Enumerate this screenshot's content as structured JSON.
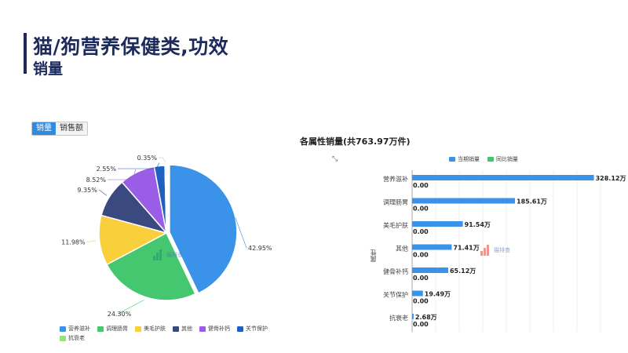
{
  "header": {
    "title": "猫/狗营养保健类,功效",
    "subtitle": "销量"
  },
  "tabs": [
    {
      "label": "销量",
      "active": true
    },
    {
      "label": "销售额",
      "active": false
    }
  ],
  "watermark": {
    "text": "猫排查",
    "icon": "dst-logo-icon"
  },
  "colors": {
    "accent": "#2f8ae0",
    "title": "#1d2a5c",
    "bar_current": "#3a93e8",
    "bar_yoy": "#3fc76b"
  },
  "chart_data": [
    {
      "type": "pie",
      "title": "",
      "categories": [
        "营养滋补",
        "调理肠胃",
        "美毛护肤",
        "其他",
        "健骨补钙",
        "关节保护",
        "抗衰老"
      ],
      "values": [
        42.95,
        24.3,
        11.98,
        9.35,
        8.52,
        2.55,
        0.35
      ],
      "labels": [
        "42.95%",
        "24.30%",
        "11.98%",
        "9.35%",
        "8.52%",
        "2.55%",
        "0.35%"
      ],
      "colors": [
        "#3a93e8",
        "#44c76e",
        "#f9cf3c",
        "#3a4a80",
        "#9a5ee6",
        "#1f5fbe",
        "#9be07c"
      ],
      "legend": "bottom"
    },
    {
      "type": "bar",
      "orientation": "horizontal",
      "title": "各属性销量(共763.97万件)",
      "ylabel": "属性",
      "categories": [
        "营养滋补",
        "调理肠胃",
        "美毛护肤",
        "其他",
        "健骨补钙",
        "关节保护",
        "抗衰老"
      ],
      "series": [
        {
          "name": "当期销量",
          "values": [
            328.12,
            185.61,
            91.54,
            71.41,
            65.12,
            19.49,
            2.68
          ],
          "labels": [
            "328.12万",
            "185.61万",
            "91.54万",
            "71.41万",
            "65.12万",
            "19.49万",
            "2.68万"
          ]
        },
        {
          "name": "同比销量",
          "values": [
            0,
            0,
            0,
            0,
            0,
            0,
            0
          ],
          "labels": [
            "0.00",
            "0.00",
            "0.00",
            "0.00",
            "0.00",
            "0.00",
            "0.00"
          ]
        }
      ],
      "xlim": [
        0,
        340
      ],
      "grid": true,
      "legend": "top"
    }
  ]
}
